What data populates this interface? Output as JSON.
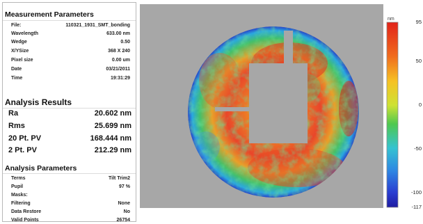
{
  "measurement_parameters": {
    "title": "Measurement Parameters",
    "rows": [
      {
        "label": "File:",
        "value": "110321_1931_SMT_bonding"
      },
      {
        "label": "Wavelength",
        "value": "633.00 nm"
      },
      {
        "label": "Wedge",
        "value": "0.50"
      },
      {
        "label": "X/YSize",
        "value": "368 X 240"
      },
      {
        "label": "Pixel size",
        "value": "0.00 um"
      },
      {
        "label": "Date",
        "value": "03/21/2011"
      },
      {
        "label": "Time",
        "value": "19:31:29"
      }
    ]
  },
  "analysis_results": {
    "title": "Analysis Results",
    "rows": [
      {
        "label": "Ra",
        "value": "20.602 nm"
      },
      {
        "label": "Rms",
        "value": "25.699 nm"
      },
      {
        "label": "20 Pt. PV",
        "value": "168.444 nm"
      },
      {
        "label": "2 Pt. PV",
        "value": "212.29 nm"
      }
    ]
  },
  "analysis_parameters": {
    "title": "Analysis Parameters",
    "rows": [
      {
        "label": "Terms",
        "value": "Tilt Trim2"
      },
      {
        "label": "Pupil",
        "value": "97 %"
      },
      {
        "label": "Masks:",
        "value": ""
      },
      {
        "label": "Filtering",
        "value": "None"
      },
      {
        "label": "Data Restore",
        "value": "No"
      },
      {
        "label": "Valid Points",
        "value": "26754"
      }
    ]
  },
  "colorbar": {
    "unit": "nm",
    "ticks": [
      "95",
      "50",
      "0",
      "-50",
      "-100",
      "-117"
    ],
    "tick_values": [
      95,
      50,
      0,
      -50,
      -100,
      -117
    ],
    "min": -117,
    "max": 95
  },
  "colors": {
    "background_plot": "#a7a7a7",
    "high": "#d6231d",
    "mid": "#2fc04a",
    "low": "#1b2fb3"
  }
}
